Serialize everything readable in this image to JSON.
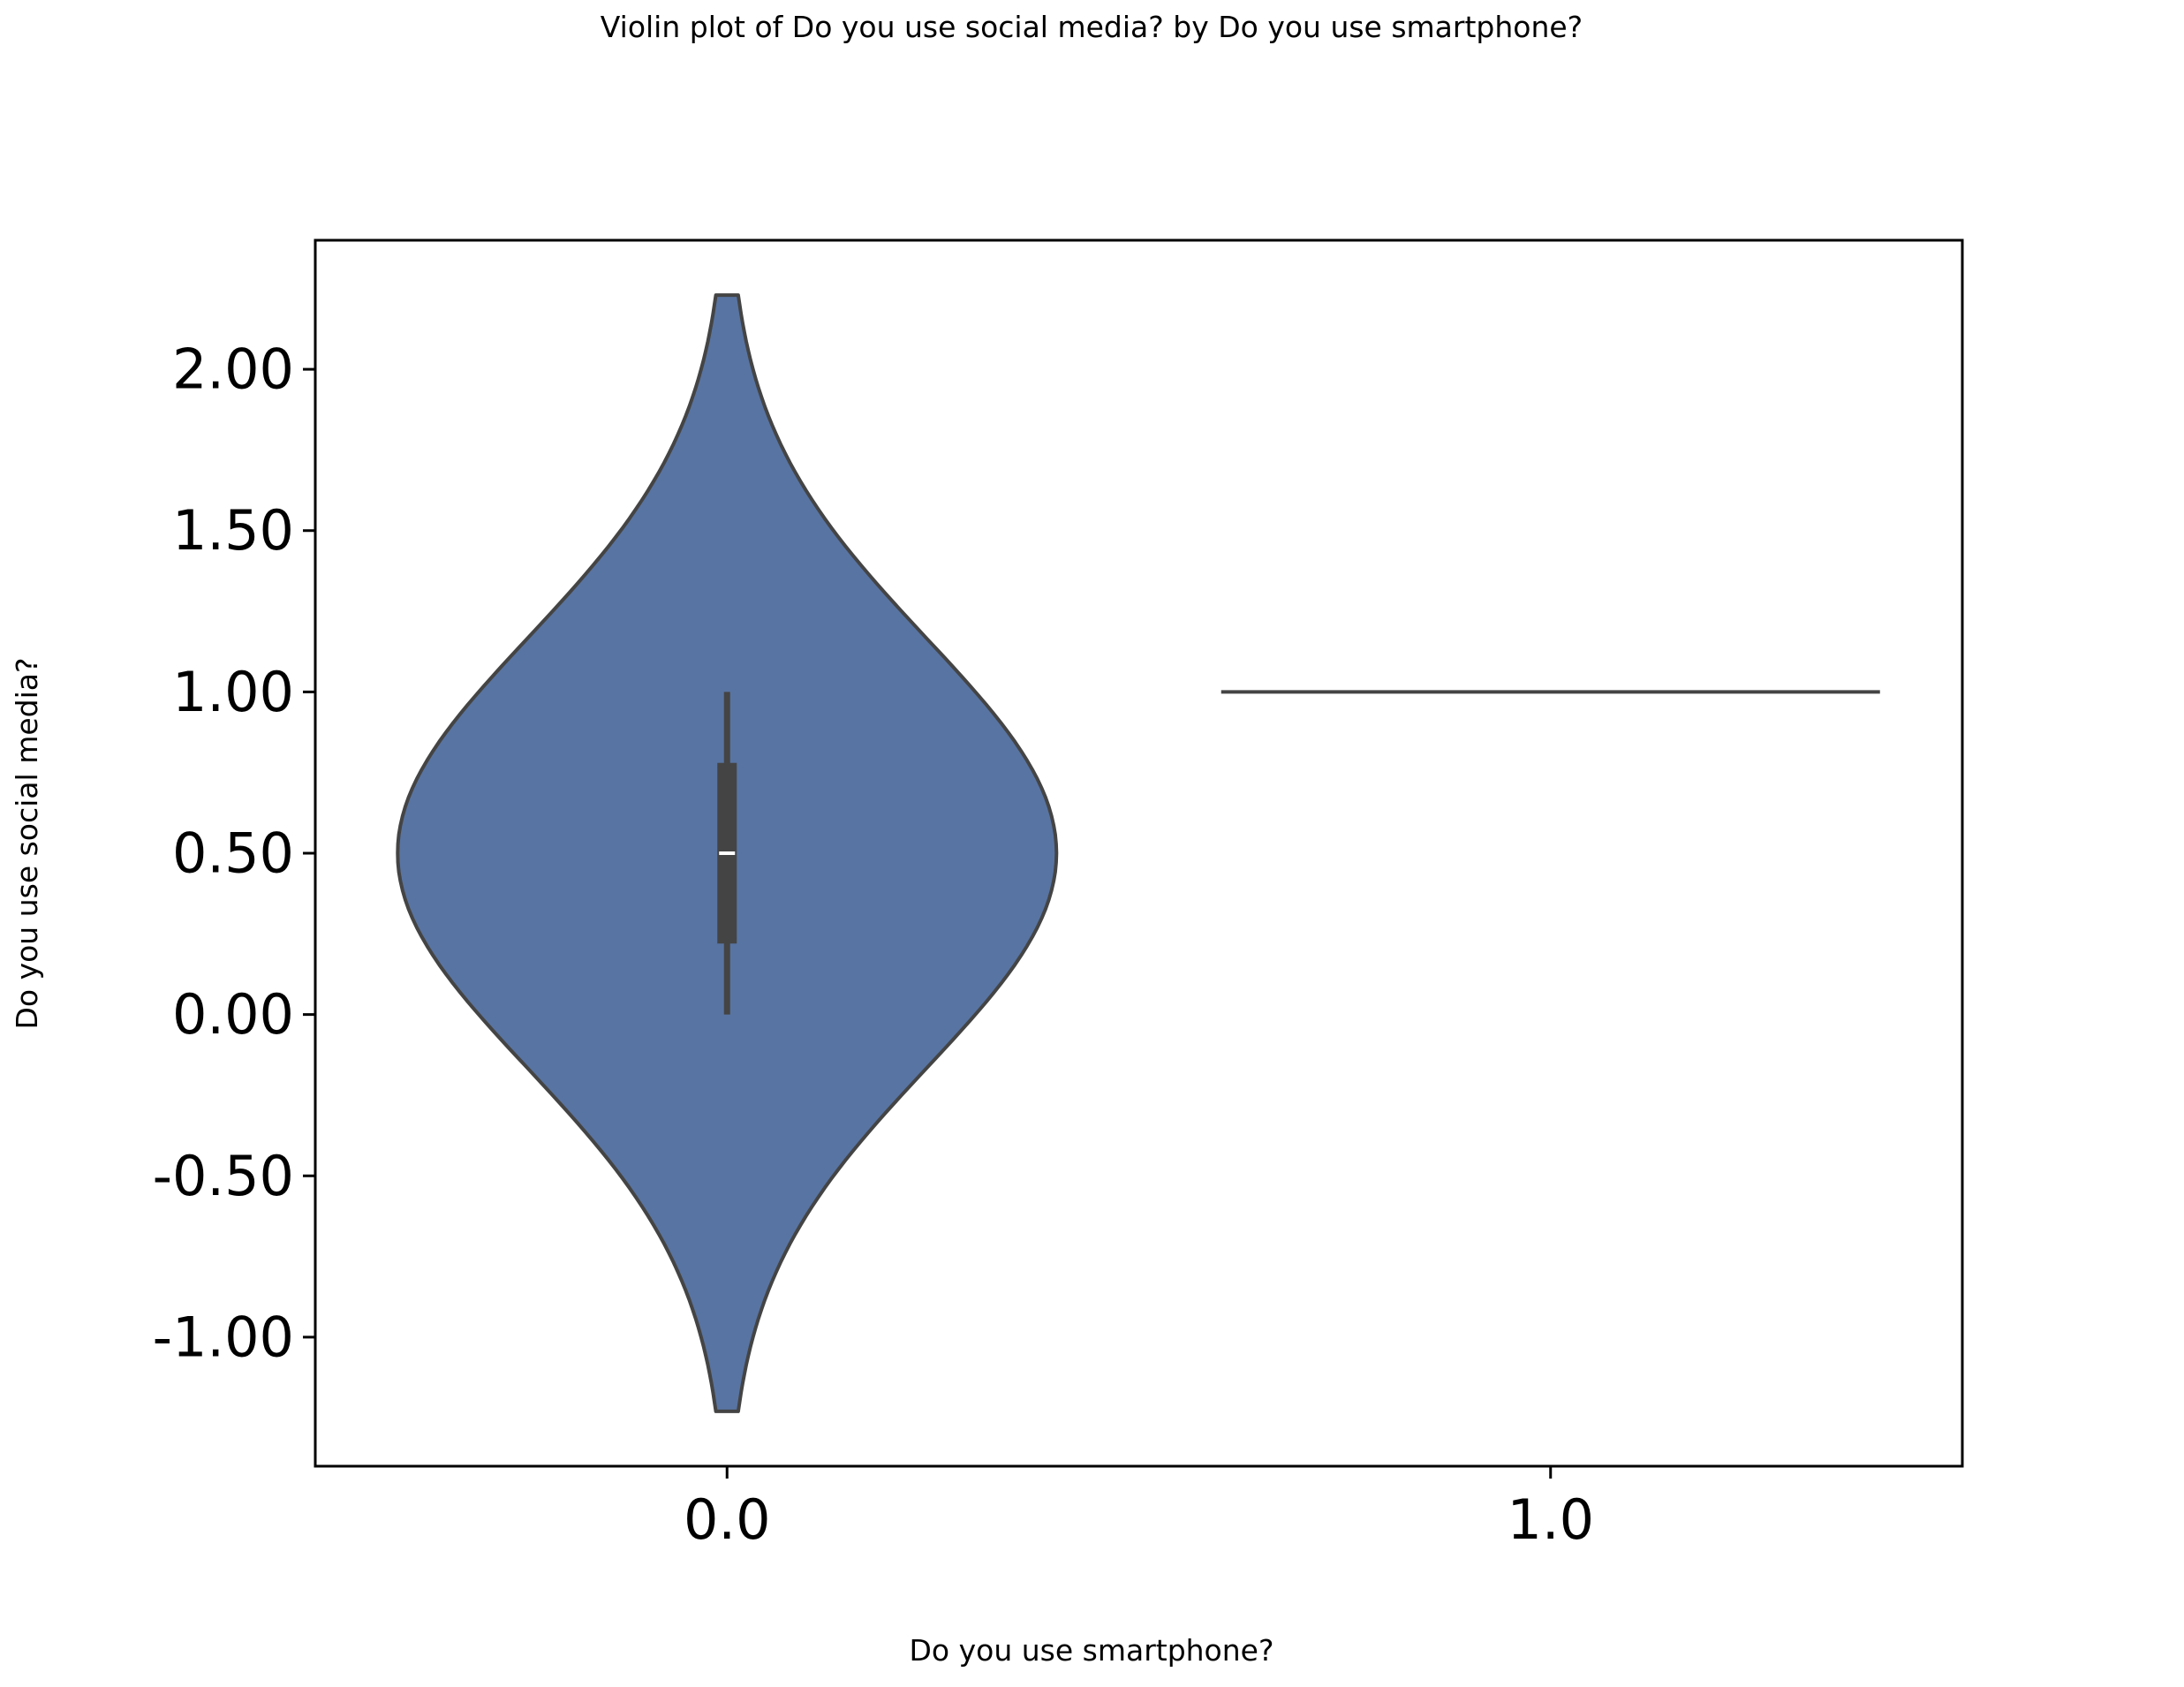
{
  "chart_data": {
    "type": "violin",
    "title": "Violin plot of Do you use social media? by Do you use smartphone?",
    "xlabel": "Do you use smartphone?",
    "ylabel": "Do you use social media?",
    "categories": [
      "0.0",
      "1.0"
    ],
    "y_ticks": [
      "2.00",
      "1.50",
      "1.00",
      "0.50",
      "0.00",
      "-0.50",
      "-1.00"
    ],
    "y_tick_values": [
      2.0,
      1.5,
      1.0,
      0.5,
      0.0,
      -0.5,
      -1.0
    ],
    "ylim": [
      -1.4,
      2.4
    ],
    "grid": false,
    "violins": [
      {
        "category": "0.0",
        "kde_min": -1.23,
        "kde_max": 2.23,
        "center": 0.5,
        "max_halfwidth": 0.4,
        "median": 0.5,
        "q1": 0.22,
        "q3": 0.78,
        "whisker_low": 0.0,
        "whisker_high": 1.0
      },
      {
        "category": "1.0",
        "single_value": 1.0,
        "max_halfwidth": 0.4
      }
    ],
    "fill_color": "#5874a2",
    "edge_color": "#444444"
  }
}
